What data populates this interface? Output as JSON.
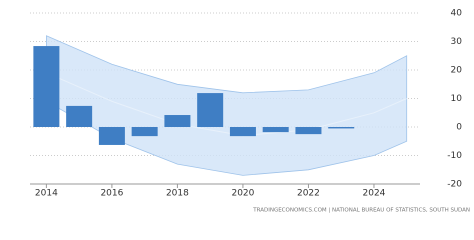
{
  "chart_data": {
    "type": "bar",
    "x": [
      2014,
      2015,
      2016,
      2017,
      2018,
      2019,
      2020,
      2021,
      2022,
      2023
    ],
    "values": [
      28.4,
      7.4,
      -6.3,
      -3.2,
      4.2,
      11.9,
      -3.2,
      -1.8,
      -2.5,
      -0.5
    ],
    "color": "#3f7ec4",
    "band": {
      "x": [
        2014,
        2016,
        2018,
        2020,
        2022,
        2024,
        2025
      ],
      "upper": [
        32,
        22,
        15,
        12,
        13,
        19,
        25
      ],
      "lower": [
        9,
        -4,
        -13,
        -17,
        -15,
        -10,
        -5
      ],
      "trend": [
        19,
        9,
        1,
        -3,
        -1,
        5,
        10
      ],
      "color": "#cfe2f7"
    },
    "xlim": [
      2013.5,
      2025.1
    ],
    "xticks": [
      2014,
      2016,
      2018,
      2020,
      2022,
      2024
    ],
    "ylim": [
      -20,
      40
    ],
    "yticks": [
      -20,
      -10,
      0,
      10,
      20,
      30,
      40
    ],
    "grid": true,
    "source": "TRADINGECONOMICS.COM | NATIONAL BUREAU OF STATISTICS, SOUTH SUDAN"
  }
}
